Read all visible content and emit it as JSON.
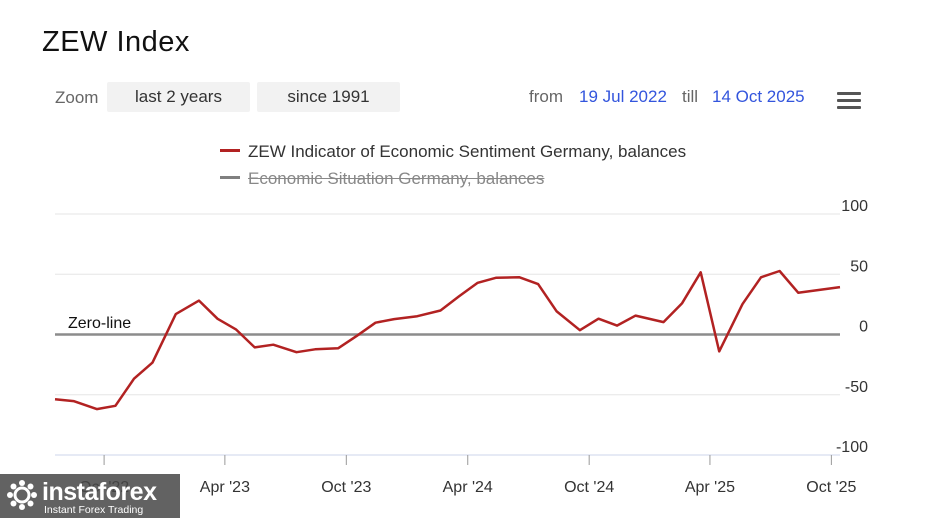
{
  "title": "ZEW Index",
  "zoom": {
    "label": "Zoom",
    "buttons": [
      "last 2 years",
      "since 1991"
    ]
  },
  "range": {
    "from_label": "from",
    "from": "19 Jul 2022",
    "till_label": "till",
    "till": "14 Oct 2025"
  },
  "menu_icon": "hamburger-icon",
  "annotation": "Zero-line",
  "logo": {
    "name": "instaforex",
    "tagline": "Instant Forex Trading",
    "icon": "instaforex-logo-icon"
  },
  "chart_data": {
    "type": "line",
    "title": "ZEW Index",
    "x_range": [
      "2022-07-19",
      "2025-10-14"
    ],
    "ylim": [
      -100,
      100
    ],
    "y_ticks": [
      100,
      50,
      0,
      -50,
      -100
    ],
    "x_ticks": [
      {
        "label": "Oct '22",
        "date": "2022-10-01"
      },
      {
        "label": "Apr '23",
        "date": "2023-04-01"
      },
      {
        "label": "Oct '23",
        "date": "2023-10-01"
      },
      {
        "label": "Apr '24",
        "date": "2024-04-01"
      },
      {
        "label": "Oct '24",
        "date": "2024-10-01"
      },
      {
        "label": "Apr '25",
        "date": "2025-04-01"
      },
      {
        "label": "Oct '25",
        "date": "2025-10-01"
      }
    ],
    "grid": true,
    "legend_position": "top-center",
    "series": [
      {
        "name": "ZEW Indicator of Economic Sentiment Germany, balances",
        "color": "#b22222",
        "visible": true,
        "points": [
          [
            "2022-07-19",
            -53.8
          ],
          [
            "2022-08-16",
            -55.3
          ],
          [
            "2022-09-20",
            -61.9
          ],
          [
            "2022-10-18",
            -59.2
          ],
          [
            "2022-11-15",
            -36.7
          ],
          [
            "2022-12-13",
            -23.3
          ],
          [
            "2023-01-17",
            16.9
          ],
          [
            "2023-02-21",
            28.1
          ],
          [
            "2023-03-21",
            13.0
          ],
          [
            "2023-04-18",
            4.1
          ],
          [
            "2023-05-16",
            -10.7
          ],
          [
            "2023-06-13",
            -8.5
          ],
          [
            "2023-07-18",
            -14.7
          ],
          [
            "2023-08-15",
            -12.3
          ],
          [
            "2023-09-19",
            -11.4
          ],
          [
            "2023-10-17",
            -1.1
          ],
          [
            "2023-11-14",
            9.8
          ],
          [
            "2023-12-12",
            12.8
          ],
          [
            "2024-01-16",
            15.2
          ],
          [
            "2024-02-20",
            19.9
          ],
          [
            "2024-03-19",
            31.7
          ],
          [
            "2024-04-16",
            42.9
          ],
          [
            "2024-05-14",
            47.1
          ],
          [
            "2024-06-18",
            47.5
          ],
          [
            "2024-07-16",
            41.8
          ],
          [
            "2024-08-13",
            19.2
          ],
          [
            "2024-09-17",
            3.6
          ],
          [
            "2024-10-15",
            13.1
          ],
          [
            "2024-11-12",
            7.4
          ],
          [
            "2024-12-10",
            15.7
          ],
          [
            "2025-01-21",
            10.3
          ],
          [
            "2025-02-18",
            26.0
          ],
          [
            "2025-03-18",
            51.6
          ],
          [
            "2025-04-15",
            -14.0
          ],
          [
            "2025-05-20",
            25.2
          ],
          [
            "2025-06-17",
            47.5
          ],
          [
            "2025-07-15",
            52.7
          ],
          [
            "2025-08-12",
            34.7
          ],
          [
            "2025-09-16",
            37.3
          ],
          [
            "2025-10-14",
            39.3
          ]
        ]
      },
      {
        "name": "Economic Situation Germany, balances",
        "color": "#808080",
        "visible": false,
        "points": []
      }
    ]
  }
}
